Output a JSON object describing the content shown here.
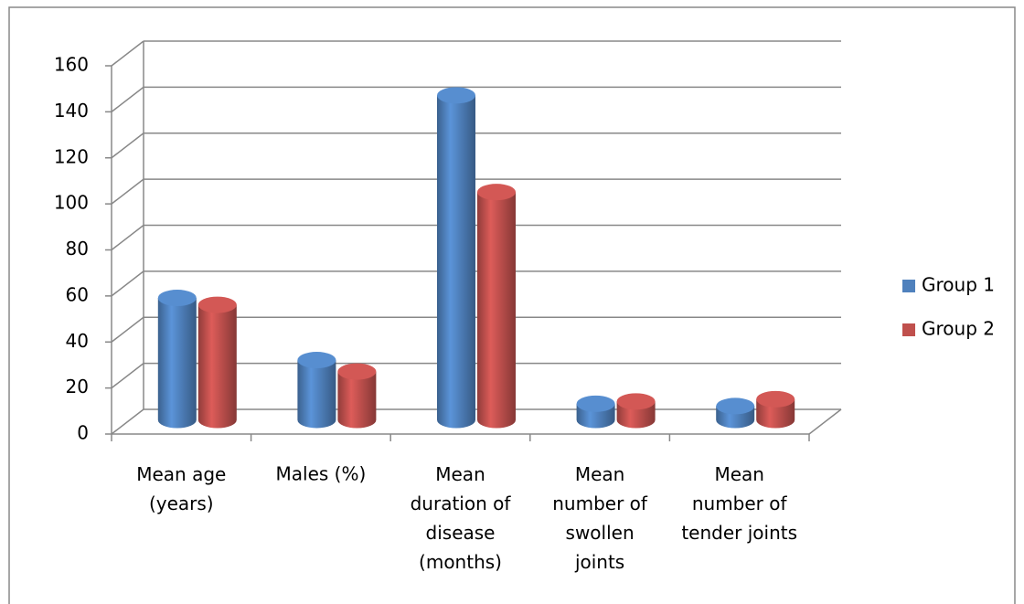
{
  "chart_data": {
    "type": "bar3d",
    "categories": [
      "Mean age\n(years)",
      "Males (%)",
      "Mean\nduration of\ndisease\n(months)",
      "Mean\nnumber of\nswollen\njoints",
      "Mean\nnumber of\ntender joints"
    ],
    "series": [
      {
        "name": "Group 1",
        "color": "#4f81bd",
        "values": [
          53,
          26,
          141,
          7,
          6
        ]
      },
      {
        "name": "Group 2",
        "color": "#c0504d",
        "values": [
          50,
          21,
          99,
          8,
          9
        ]
      }
    ],
    "ylim": [
      0,
      160
    ],
    "yticks": [
      0,
      20,
      40,
      60,
      80,
      100,
      120,
      140,
      160
    ],
    "grid": true,
    "legend": "right"
  }
}
